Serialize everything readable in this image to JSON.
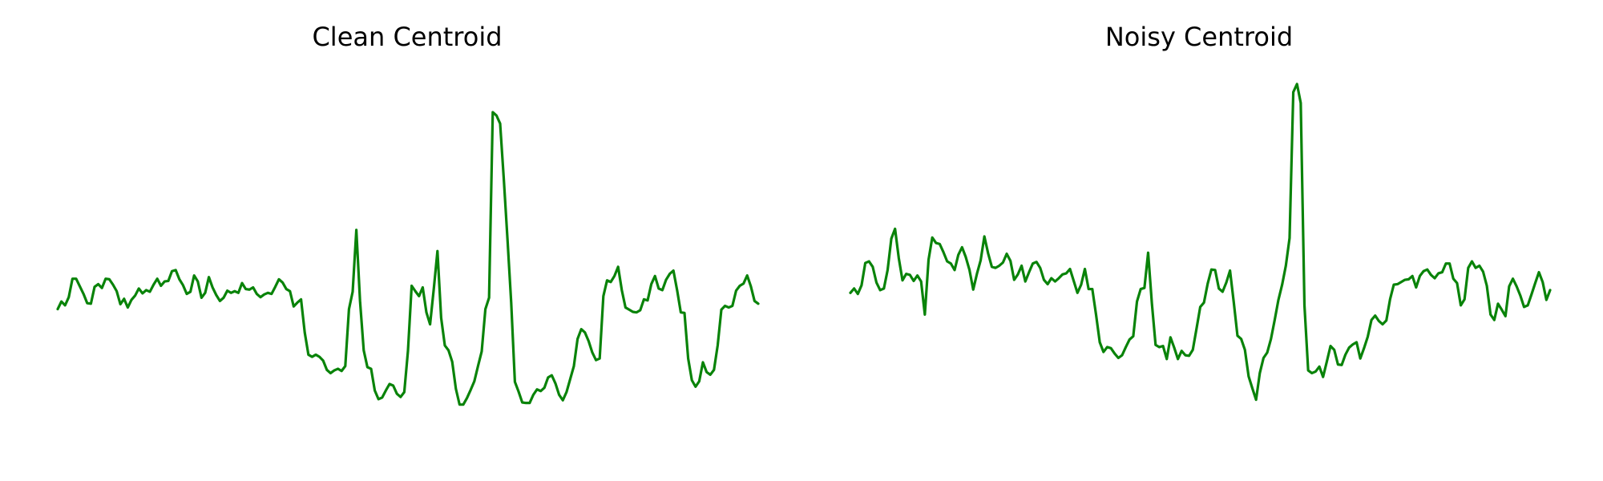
{
  "colors": {
    "line": "#098309",
    "background": "#ffffff",
    "title": "#000000"
  },
  "chart_data": [
    {
      "type": "line",
      "title": "Clean Centroid",
      "xlabel": "",
      "ylabel": "",
      "axes_visible": false,
      "grid": false,
      "legend": "none",
      "x_range": [
        0,
        176
      ],
      "ylim": [
        -2.4,
        4.25
      ],
      "y": [
        0.0,
        0.14,
        0.07,
        0.22,
        0.56,
        0.56,
        0.42,
        0.28,
        0.11,
        0.1,
        0.41,
        0.46,
        0.39,
        0.56,
        0.55,
        0.45,
        0.33,
        0.09,
        0.19,
        0.03,
        0.17,
        0.25,
        0.38,
        0.29,
        0.35,
        0.32,
        0.45,
        0.56,
        0.43,
        0.51,
        0.52,
        0.7,
        0.72,
        0.55,
        0.44,
        0.28,
        0.32,
        0.62,
        0.51,
        0.21,
        0.3,
        0.59,
        0.4,
        0.26,
        0.15,
        0.21,
        0.34,
        0.3,
        0.33,
        0.3,
        0.48,
        0.37,
        0.36,
        0.4,
        0.28,
        0.22,
        0.27,
        0.3,
        0.28,
        0.41,
        0.55,
        0.49,
        0.37,
        0.33,
        0.05,
        0.12,
        0.18,
        -0.43,
        -0.84,
        -0.88,
        -0.84,
        -0.88,
        -0.95,
        -1.12,
        -1.18,
        -1.13,
        -1.1,
        -1.14,
        -1.05,
        0.0,
        0.32,
        1.46,
        0.15,
        -0.76,
        -1.07,
        -1.1,
        -1.5,
        -1.66,
        -1.63,
        -1.5,
        -1.38,
        -1.41,
        -1.56,
        -1.62,
        -1.53,
        -0.77,
        0.43,
        0.33,
        0.24,
        0.4,
        -0.06,
        -0.28,
        0.37,
        1.07,
        -0.16,
        -0.67,
        -0.76,
        -0.97,
        -1.47,
        -1.76,
        -1.76,
        -1.64,
        -1.49,
        -1.33,
        -1.05,
        -0.78,
        0.0,
        0.21,
        3.63,
        3.57,
        3.42,
        2.39,
        1.28,
        0.12,
        -1.34,
        -1.52,
        -1.72,
        -1.73,
        -1.73,
        -1.58,
        -1.48,
        -1.51,
        -1.45,
        -1.26,
        -1.22,
        -1.37,
        -1.58,
        -1.68,
        -1.53,
        -1.29,
        -1.05,
        -0.55,
        -0.37,
        -0.43,
        -0.59,
        -0.8,
        -0.94,
        -0.91,
        0.24,
        0.53,
        0.5,
        0.61,
        0.78,
        0.35,
        0.03,
        -0.01,
        -0.05,
        -0.06,
        -0.02,
        0.18,
        0.16,
        0.46,
        0.61,
        0.38,
        0.35,
        0.54,
        0.65,
        0.71,
        0.35,
        -0.06,
        -0.07,
        -0.91,
        -1.31,
        -1.43,
        -1.33,
        -0.98,
        -1.16,
        -1.21,
        -1.12,
        -0.67,
        -0.01,
        0.06,
        0.03,
        0.06,
        0.34,
        0.43,
        0.47,
        0.62,
        0.42,
        0.15,
        0.1
      ]
    },
    {
      "type": "line",
      "title": "Noisy Centroid",
      "xlabel": "",
      "ylabel": "",
      "axes_visible": false,
      "grid": false,
      "legend": "none",
      "x_range": [
        0,
        176
      ],
      "ylim": [
        -2.4,
        4.25
      ],
      "y": [
        0.3,
        0.38,
        0.28,
        0.44,
        0.85,
        0.88,
        0.78,
        0.49,
        0.35,
        0.38,
        0.72,
        1.3,
        1.48,
        0.94,
        0.53,
        0.65,
        0.63,
        0.52,
        0.62,
        0.51,
        -0.1,
        0.91,
        1.32,
        1.22,
        1.2,
        1.05,
        0.88,
        0.84,
        0.72,
        1.0,
        1.14,
        0.96,
        0.72,
        0.36,
        0.65,
        0.9,
        1.34,
        1.03,
        0.78,
        0.76,
        0.8,
        0.86,
        1.02,
        0.89,
        0.54,
        0.64,
        0.8,
        0.51,
        0.68,
        0.84,
        0.87,
        0.76,
        0.54,
        0.46,
        0.57,
        0.51,
        0.57,
        0.64,
        0.66,
        0.74,
        0.52,
        0.3,
        0.45,
        0.74,
        0.37,
        0.37,
        -0.1,
        -0.61,
        -0.79,
        -0.7,
        -0.72,
        -0.82,
        -0.9,
        -0.85,
        -0.7,
        -0.56,
        -0.5,
        0.14,
        0.37,
        0.39,
        1.04,
        0.11,
        -0.66,
        -0.7,
        -0.68,
        -0.92,
        -0.52,
        -0.71,
        -0.92,
        -0.77,
        -0.85,
        -0.86,
        -0.75,
        -0.36,
        0.04,
        0.12,
        0.47,
        0.73,
        0.72,
        0.38,
        0.32,
        0.49,
        0.71,
        0.13,
        -0.49,
        -0.55,
        -0.75,
        -1.24,
        -1.46,
        -1.67,
        -1.18,
        -0.9,
        -0.8,
        -0.55,
        -0.2,
        0.17,
        0.45,
        0.8,
        1.31,
        4.0,
        4.15,
        3.8,
        0.07,
        -1.13,
        -1.18,
        -1.15,
        -1.06,
        -1.25,
        -0.97,
        -0.68,
        -0.75,
        -1.02,
        -1.03,
        -0.84,
        -0.71,
        -0.65,
        -0.61,
        -0.91,
        -0.72,
        -0.51,
        -0.2,
        -0.12,
        -0.22,
        -0.28,
        -0.21,
        0.18,
        0.45,
        0.46,
        0.5,
        0.54,
        0.55,
        0.61,
        0.4,
        0.61,
        0.7,
        0.73,
        0.63,
        0.57,
        0.66,
        0.68,
        0.84,
        0.84,
        0.56,
        0.48,
        0.07,
        0.18,
        0.76,
        0.88,
        0.76,
        0.8,
        0.69,
        0.43,
        -0.1,
        -0.2,
        0.1,
        -0.01,
        -0.13,
        0.42,
        0.56,
        0.42,
        0.25,
        0.04,
        0.07,
        0.27,
        0.48,
        0.68,
        0.5,
        0.17,
        0.35
      ]
    }
  ]
}
